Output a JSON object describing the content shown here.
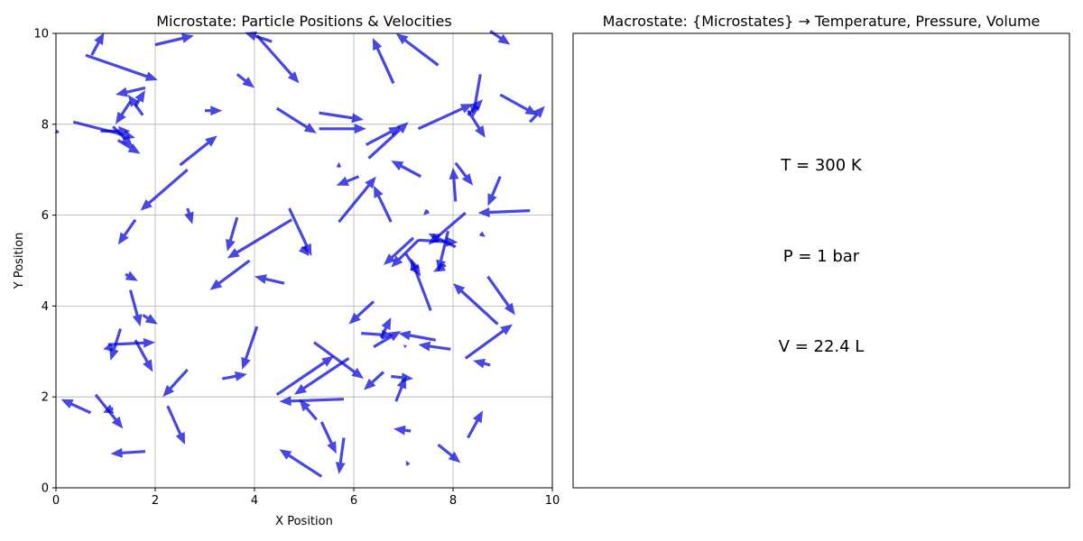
{
  "chart_data": [
    {
      "type": "quiver",
      "title": "Microstate: Particle Positions & Velocities",
      "xlabel": "X Position",
      "ylabel": "Y Position",
      "xlim": [
        0,
        10
      ],
      "ylim": [
        0,
        10
      ],
      "xticks": [
        "0",
        "2",
        "4",
        "6",
        "8",
        "10"
      ],
      "yticks": [
        "0",
        "2",
        "4",
        "6",
        "8",
        "10"
      ],
      "grid": true,
      "arrow_color": "#0000dd",
      "arrows": [
        {
          "x": 0.72,
          "y": 9.52,
          "u": 0.25,
          "v": 0.5
        },
        {
          "x": 0.6,
          "y": 9.52,
          "u": 1.45,
          "v": -0.55
        },
        {
          "x": 2.0,
          "y": 9.75,
          "u": 0.78,
          "v": 0.2
        },
        {
          "x": 4.35,
          "y": 9.82,
          "u": -0.55,
          "v": 0.2
        },
        {
          "x": 4.05,
          "y": 9.95,
          "u": 0.85,
          "v": -1.05
        },
        {
          "x": 6.8,
          "y": 8.9,
          "u": -0.42,
          "v": 1.0
        },
        {
          "x": 7.7,
          "y": 9.3,
          "u": -0.85,
          "v": 0.7
        },
        {
          "x": 8.75,
          "y": 10.05,
          "u": 0.4,
          "v": -0.3
        },
        {
          "x": 8.55,
          "y": 9.1,
          "u": -0.15,
          "v": -0.95
        },
        {
          "x": 1.8,
          "y": 8.8,
          "u": -0.6,
          "v": -0.15
        },
        {
          "x": 1.6,
          "y": 8.4,
          "u": 0.2,
          "v": 0.35
        },
        {
          "x": 1.5,
          "y": 8.5,
          "u": -0.3,
          "v": -0.5
        },
        {
          "x": 1.75,
          "y": 8.2,
          "u": -0.3,
          "v": 0.45
        },
        {
          "x": 3.65,
          "y": 9.1,
          "u": 0.35,
          "v": -0.3
        },
        {
          "x": 3.0,
          "y": 8.3,
          "u": 0.35,
          "v": 0.0
        },
        {
          "x": 0.35,
          "y": 8.05,
          "u": 1.25,
          "v": -0.35
        },
        {
          "x": 0.9,
          "y": 7.85,
          "u": 0.6,
          "v": 0.0
        },
        {
          "x": 1.15,
          "y": 7.95,
          "u": 0.4,
          "v": -0.45
        },
        {
          "x": 1.25,
          "y": 7.65,
          "u": 0.45,
          "v": -0.3
        },
        {
          "x": 0.05,
          "y": 7.85,
          "u": -0.08,
          "v": -0.05
        },
        {
          "x": 4.45,
          "y": 8.35,
          "u": 0.8,
          "v": -0.55
        },
        {
          "x": 5.3,
          "y": 8.25,
          "u": 0.9,
          "v": -0.15
        },
        {
          "x": 5.3,
          "y": 7.9,
          "u": 0.95,
          "v": 0.0
        },
        {
          "x": 7.3,
          "y": 7.9,
          "u": 1.1,
          "v": 0.55
        },
        {
          "x": 8.3,
          "y": 8.2,
          "u": 0.3,
          "v": 0.35
        },
        {
          "x": 8.3,
          "y": 8.3,
          "u": 0.35,
          "v": -0.6
        },
        {
          "x": 8.95,
          "y": 8.65,
          "u": 0.75,
          "v": -0.45
        },
        {
          "x": 9.55,
          "y": 8.05,
          "u": 0.3,
          "v": 0.35
        },
        {
          "x": 6.25,
          "y": 7.55,
          "u": 0.7,
          "v": 0.4
        },
        {
          "x": 6.3,
          "y": 7.25,
          "u": 0.8,
          "v": 0.8
        },
        {
          "x": 2.5,
          "y": 7.1,
          "u": 0.75,
          "v": 0.65
        },
        {
          "x": 2.65,
          "y": 7.0,
          "u": -0.95,
          "v": -0.9
        },
        {
          "x": 7.35,
          "y": 6.85,
          "u": -0.6,
          "v": 0.35
        },
        {
          "x": 5.7,
          "y": 7.05,
          "u": 0.0,
          "v": 0.12
        },
        {
          "x": 6.1,
          "y": 6.85,
          "u": -0.45,
          "v": -0.2
        },
        {
          "x": 8.05,
          "y": 7.15,
          "u": 0.35,
          "v": -0.5
        },
        {
          "x": 8.05,
          "y": 6.3,
          "u": -0.05,
          "v": 0.75
        },
        {
          "x": 8.95,
          "y": 6.85,
          "u": -0.25,
          "v": -0.65
        },
        {
          "x": 5.7,
          "y": 5.85,
          "u": 0.75,
          "v": 1.0
        },
        {
          "x": 6.75,
          "y": 5.85,
          "u": -0.35,
          "v": 0.8
        },
        {
          "x": 1.6,
          "y": 5.9,
          "u": -0.35,
          "v": -0.55
        },
        {
          "x": 2.65,
          "y": 6.15,
          "u": 0.1,
          "v": -0.35
        },
        {
          "x": 3.65,
          "y": 5.95,
          "u": -0.2,
          "v": -0.75
        },
        {
          "x": 4.75,
          "y": 5.9,
          "u": -1.3,
          "v": -0.85
        },
        {
          "x": 4.7,
          "y": 6.15,
          "u": 0.45,
          "v": -1.05
        },
        {
          "x": 4.95,
          "y": 5.3,
          "u": 0.15,
          "v": -0.2
        },
        {
          "x": 7.5,
          "y": 6.1,
          "u": -0.1,
          "v": -0.1
        },
        {
          "x": 9.55,
          "y": 6.1,
          "u": -1.05,
          "v": -0.05
        },
        {
          "x": 7.2,
          "y": 5.5,
          "u": -0.6,
          "v": -0.6
        },
        {
          "x": 7.3,
          "y": 5.45,
          "u": -0.55,
          "v": -0.6
        },
        {
          "x": 7.05,
          "y": 5.15,
          "u": 0.3,
          "v": -0.5
        },
        {
          "x": 7.55,
          "y": 3.9,
          "u": -0.4,
          "v": 1.15
        },
        {
          "x": 7.3,
          "y": 5.45,
          "u": 0.8,
          "v": -0.05
        },
        {
          "x": 8.25,
          "y": 6.05,
          "u": -0.75,
          "v": -0.7
        },
        {
          "x": 8.05,
          "y": 5.3,
          "u": -0.55,
          "v": 0.3
        },
        {
          "x": 7.9,
          "y": 5.65,
          "u": -0.2,
          "v": -0.9
        },
        {
          "x": 7.85,
          "y": 4.9,
          "u": -0.25,
          "v": -0.15
        },
        {
          "x": 8.55,
          "y": 5.6,
          "u": 0.1,
          "v": -0.08
        },
        {
          "x": 1.4,
          "y": 4.7,
          "u": 0.25,
          "v": -0.15
        },
        {
          "x": 3.9,
          "y": 5.0,
          "u": -0.8,
          "v": -0.65
        },
        {
          "x": 4.6,
          "y": 4.5,
          "u": -0.6,
          "v": 0.15
        },
        {
          "x": 1.5,
          "y": 4.35,
          "u": 0.2,
          "v": -0.8
        },
        {
          "x": 1.75,
          "y": 3.8,
          "u": 0.3,
          "v": -0.2
        },
        {
          "x": 8.7,
          "y": 4.65,
          "u": 0.55,
          "v": -0.85
        },
        {
          "x": 8.9,
          "y": 3.6,
          "u": -0.9,
          "v": 0.9
        },
        {
          "x": 8.25,
          "y": 2.85,
          "u": 0.95,
          "v": 0.75
        },
        {
          "x": 8.75,
          "y": 2.7,
          "u": -0.35,
          "v": 0.1
        },
        {
          "x": 1.3,
          "y": 3.5,
          "u": -0.2,
          "v": -0.7
        },
        {
          "x": 1.05,
          "y": 3.15,
          "u": 0.95,
          "v": 0.05
        },
        {
          "x": 1.15,
          "y": 3.1,
          "u": -0.2,
          "v": -0.05
        },
        {
          "x": 1.6,
          "y": 3.25,
          "u": 0.35,
          "v": -0.7
        },
        {
          "x": 4.05,
          "y": 3.55,
          "u": -0.3,
          "v": -0.95
        },
        {
          "x": 6.4,
          "y": 4.1,
          "u": -0.5,
          "v": -0.5
        },
        {
          "x": 6.15,
          "y": 3.4,
          "u": 0.65,
          "v": -0.05
        },
        {
          "x": 6.55,
          "y": 3.3,
          "u": 0.2,
          "v": 0.45
        },
        {
          "x": 6.4,
          "y": 3.1,
          "u": 0.55,
          "v": 0.35
        },
        {
          "x": 7.65,
          "y": 3.25,
          "u": -0.75,
          "v": 0.15
        },
        {
          "x": 7.95,
          "y": 3.05,
          "u": -0.65,
          "v": 0.1
        },
        {
          "x": 7.05,
          "y": 3.1,
          "u": -0.05,
          "v": 0.05
        },
        {
          "x": 5.2,
          "y": 3.2,
          "u": 1.0,
          "v": -0.8
        },
        {
          "x": 2.65,
          "y": 2.6,
          "u": -0.5,
          "v": -0.6
        },
        {
          "x": 3.35,
          "y": 2.4,
          "u": 0.5,
          "v": 0.1
        },
        {
          "x": 4.45,
          "y": 2.05,
          "u": 1.15,
          "v": 0.85
        },
        {
          "x": 5.9,
          "y": 2.85,
          "u": -1.1,
          "v": -0.8
        },
        {
          "x": 6.6,
          "y": 2.55,
          "u": -0.4,
          "v": -0.4
        },
        {
          "x": 6.75,
          "y": 2.45,
          "u": 0.45,
          "v": -0.05
        },
        {
          "x": 6.85,
          "y": 1.9,
          "u": 0.2,
          "v": 0.55
        },
        {
          "x": 0.8,
          "y": 2.05,
          "u": 0.55,
          "v": -0.75
        },
        {
          "x": 0.7,
          "y": 1.65,
          "u": -0.6,
          "v": 0.3
        },
        {
          "x": 1.15,
          "y": 1.75,
          "u": -0.2,
          "v": -0.1
        },
        {
          "x": 2.25,
          "y": 1.8,
          "u": 0.35,
          "v": -0.85
        },
        {
          "x": 5.8,
          "y": 1.95,
          "u": -1.3,
          "v": -0.05
        },
        {
          "x": 5.25,
          "y": 1.5,
          "u": -0.35,
          "v": 0.45
        },
        {
          "x": 5.35,
          "y": 1.45,
          "u": 0.3,
          "v": -0.7
        },
        {
          "x": 5.8,
          "y": 1.1,
          "u": -0.1,
          "v": -0.8
        },
        {
          "x": 7.15,
          "y": 1.25,
          "u": -0.35,
          "v": 0.05
        },
        {
          "x": 8.3,
          "y": 1.1,
          "u": 0.3,
          "v": 0.6
        },
        {
          "x": 7.7,
          "y": 0.95,
          "u": 0.45,
          "v": -0.4
        },
        {
          "x": 1.8,
          "y": 0.8,
          "u": -0.7,
          "v": -0.05
        },
        {
          "x": 5.35,
          "y": 0.25,
          "u": -0.85,
          "v": 0.6
        },
        {
          "x": 7.1,
          "y": 0.5,
          "u": -0.05,
          "v": 0.1
        }
      ]
    },
    {
      "type": "text",
      "title": "Macrostate: {Microstates} → Temperature, Pressure, Volume",
      "lines": [
        "T = 300 K",
        "P = 1 bar",
        "V = 22.4 L"
      ]
    }
  ]
}
